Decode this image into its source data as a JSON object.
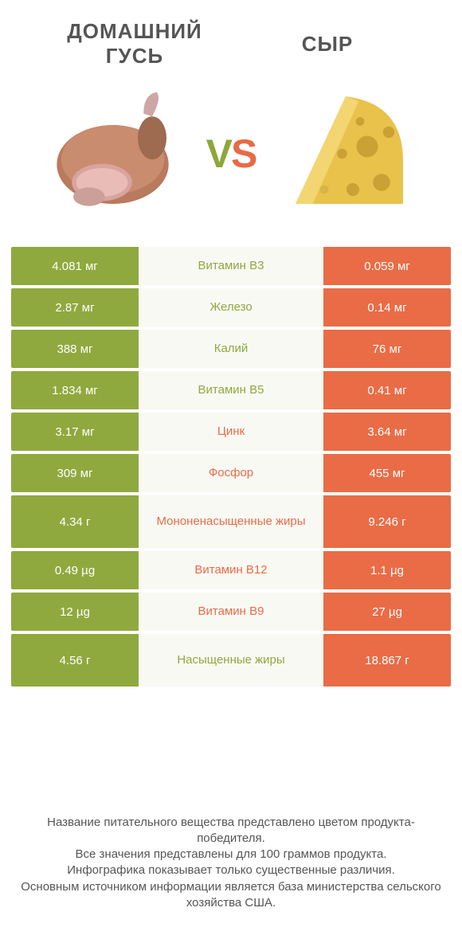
{
  "colors": {
    "green": "#8fa93e",
    "orange": "#e96c46",
    "mid_bg": "#f9f9f4",
    "text": "#555555",
    "white": "#ffffff"
  },
  "titles": {
    "left_line1": "ДОМАШНИЙ",
    "left_line2": "ГУСЬ",
    "right": "СЫР"
  },
  "vs": {
    "v": "V",
    "s": "S"
  },
  "rows": [
    {
      "left": "4.081 мг",
      "label": "Витамин B3",
      "right": "0.059 мг",
      "winner": "left",
      "tall": false
    },
    {
      "left": "2.87 мг",
      "label": "Железо",
      "right": "0.14 мг",
      "winner": "left",
      "tall": false
    },
    {
      "left": "388 мг",
      "label": "Калий",
      "right": "76 мг",
      "winner": "left",
      "tall": false
    },
    {
      "left": "1.834 мг",
      "label": "Витамин B5",
      "right": "0.41 мг",
      "winner": "left",
      "tall": false
    },
    {
      "left": "3.17 мг",
      "label": "Цинк",
      "right": "3.64 мг",
      "winner": "right",
      "tall": false
    },
    {
      "left": "309 мг",
      "label": "Фосфор",
      "right": "455 мг",
      "winner": "right",
      "tall": false
    },
    {
      "left": "4.34 г",
      "label": "Мононенасыщенные жиры",
      "right": "9.246 г",
      "winner": "right",
      "tall": true
    },
    {
      "left": "0.49 µg",
      "label": "Витамин B12",
      "right": "1.1 µg",
      "winner": "right",
      "tall": false
    },
    {
      "left": "12 µg",
      "label": "Витамин B9",
      "right": "27 µg",
      "winner": "right",
      "tall": false
    },
    {
      "left": "4.56 г",
      "label": "Насыщенные жиры",
      "right": "18.867 г",
      "winner": "left",
      "tall": true
    }
  ],
  "footer": {
    "l1": "Название питательного вещества представлено цветом продукта-победителя.",
    "l2": "Все значения представлены для 100 граммов продукта.",
    "l3": "Инфографика показывает только существенные различия.",
    "l4": "Основным источником информации является база министерства сельского хозяйства США."
  },
  "illus": {
    "left_alt": "goose-meat-illustration",
    "right_alt": "cheese-illustration"
  }
}
